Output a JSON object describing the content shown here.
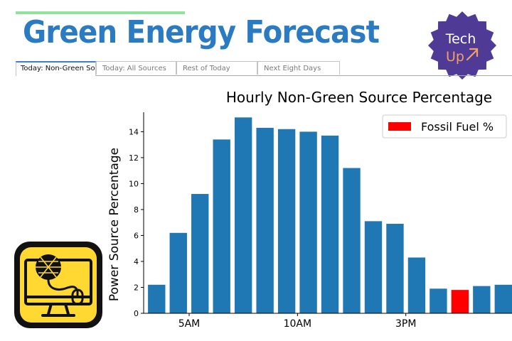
{
  "app": {
    "title": "Green Energy Forecast",
    "badge": {
      "line1": "Tech",
      "line2": "Up",
      "icon": "arrow-up-right-icon"
    }
  },
  "tabs": [
    {
      "label": "Today: Non-Green Sources",
      "active": true
    },
    {
      "label": "Today: All Sources",
      "active": false
    },
    {
      "label": "Rest of Today",
      "active": false
    },
    {
      "label": "Next Eight Days",
      "active": false
    }
  ],
  "colors": {
    "title": "#2a7bc1",
    "bar": "#1f77b4",
    "highlight": "#ff0000",
    "badge": "#4f3a96",
    "badge_accent": "#f0a068",
    "logo_fill": "#ffd832"
  },
  "chart_data": {
    "type": "bar",
    "title": "Hourly Non-Green Source Percentage",
    "xlabel": "",
    "ylabel": "Power Source Percentage",
    "ylim": [
      0,
      15.5
    ],
    "yticks": [
      0,
      2,
      4,
      6,
      8,
      10,
      12,
      14
    ],
    "x": [
      3,
      4,
      5,
      6,
      7,
      8,
      9,
      10,
      11,
      12,
      13,
      14,
      15,
      16,
      17,
      18,
      19
    ],
    "values": [
      2.2,
      6.2,
      9.2,
      13.4,
      15.1,
      14.3,
      14.2,
      14.0,
      13.7,
      11.2,
      7.1,
      6.9,
      4.3,
      1.9,
      1.8,
      2.1,
      2.2
    ],
    "xticks": [
      {
        "x": 4.5,
        "label": "5AM"
      },
      {
        "x": 9.5,
        "label": "10AM"
      },
      {
        "x": 14.5,
        "label": "3PM"
      }
    ],
    "highlight_index": 14,
    "legend": {
      "label": "Fossil Fuel %",
      "placement": "top-right"
    },
    "grid": false
  },
  "logo": {
    "name": "monitor-network-logo"
  }
}
